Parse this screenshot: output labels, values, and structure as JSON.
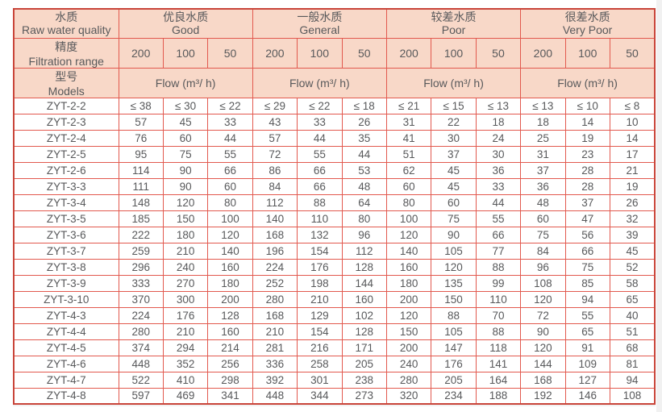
{
  "page": {
    "background": "#ffffff",
    "gutter_color": "#f1f1f1"
  },
  "colors": {
    "header_bg": "#f8d8c8",
    "border_inner": "#e2594e",
    "border_outer": "#c9453a",
    "text": "#58595b",
    "gutter": "#f1f1f1",
    "page_bg": "#ffffff"
  },
  "table": {
    "corner": {
      "zh": "水质",
      "en": "Raw water quality"
    },
    "filtration_header": {
      "zh": "精度",
      "en": "Filtration range"
    },
    "models_header": {
      "zh": "型号",
      "en": "Models"
    },
    "quality_groups": [
      {
        "zh": "优良水质",
        "en": "Good"
      },
      {
        "zh": "一般水质",
        "en": "General"
      },
      {
        "zh": "较差水质",
        "en": "Poor"
      },
      {
        "zh": "很差水质",
        "en": "Very Poor"
      }
    ],
    "filtration_values": [
      "200",
      "100",
      "50",
      "200",
      "100",
      "50",
      "200",
      "100",
      "50",
      "200",
      "100",
      "50"
    ],
    "flow_label": "Flow (m³/ h)",
    "rows": [
      {
        "model": "ZYT-2-2",
        "values": [
          "≤ 38",
          "≤ 30",
          "≤ 22",
          "≤ 29",
          "≤ 22",
          "≤ 18",
          "≤ 21",
          "≤ 15",
          "≤ 13",
          "≤ 13",
          "≤ 10",
          "≤ 8"
        ]
      },
      {
        "model": "ZYT-2-3",
        "values": [
          "57",
          "45",
          "33",
          "43",
          "33",
          "26",
          "31",
          "22",
          "18",
          "18",
          "14",
          "10"
        ]
      },
      {
        "model": "ZYT-2-4",
        "values": [
          "76",
          "60",
          "44",
          "57",
          "44",
          "35",
          "41",
          "30",
          "24",
          "25",
          "19",
          "14"
        ]
      },
      {
        "model": "ZYT-2-5",
        "values": [
          "95",
          "75",
          "55",
          "72",
          "55",
          "44",
          "51",
          "37",
          "30",
          "31",
          "23",
          "17"
        ]
      },
      {
        "model": "ZYT-2-6",
        "values": [
          "114",
          "90",
          "66",
          "86",
          "66",
          "53",
          "62",
          "45",
          "36",
          "37",
          "28",
          "21"
        ]
      },
      {
        "model": "ZYT-3-3",
        "values": [
          "111",
          "90",
          "60",
          "84",
          "66",
          "48",
          "60",
          "45",
          "33",
          "36",
          "28",
          "19"
        ]
      },
      {
        "model": "ZYT-3-4",
        "values": [
          "148",
          "120",
          "80",
          "112",
          "88",
          "64",
          "80",
          "60",
          "44",
          "48",
          "37",
          "26"
        ]
      },
      {
        "model": "ZYT-3-5",
        "values": [
          "185",
          "150",
          "100",
          "140",
          "110",
          "80",
          "100",
          "75",
          "55",
          "60",
          "47",
          "32"
        ]
      },
      {
        "model": "ZYT-3-6",
        "values": [
          "222",
          "180",
          "120",
          "168",
          "132",
          "96",
          "120",
          "90",
          "66",
          "75",
          "56",
          "39"
        ]
      },
      {
        "model": "ZYT-3-7",
        "values": [
          "259",
          "210",
          "140",
          "196",
          "154",
          "112",
          "140",
          "105",
          "77",
          "84",
          "66",
          "45"
        ]
      },
      {
        "model": "ZYT-3-8",
        "values": [
          "296",
          "240",
          "160",
          "224",
          "176",
          "128",
          "160",
          "120",
          "88",
          "96",
          "75",
          "52"
        ]
      },
      {
        "model": "ZYT-3-9",
        "values": [
          "333",
          "270",
          "180",
          "252",
          "198",
          "144",
          "180",
          "135",
          "99",
          "108",
          "85",
          "58"
        ]
      },
      {
        "model": "ZYT-3-10",
        "values": [
          "370",
          "300",
          "200",
          "280",
          "210",
          "160",
          "200",
          "150",
          "110",
          "120",
          "94",
          "65"
        ]
      },
      {
        "model": "ZYT-4-3",
        "values": [
          "224",
          "176",
          "128",
          "168",
          "129",
          "102",
          "120",
          "88",
          "70",
          "72",
          "55",
          "40"
        ]
      },
      {
        "model": "ZYT-4-4",
        "values": [
          "280",
          "210",
          "160",
          "210",
          "154",
          "128",
          "150",
          "105",
          "88",
          "90",
          "65",
          "51"
        ]
      },
      {
        "model": "ZYT-4-5",
        "values": [
          "374",
          "294",
          "214",
          "281",
          "216",
          "171",
          "200",
          "147",
          "118",
          "120",
          "91",
          "68"
        ]
      },
      {
        "model": "ZYT-4-6",
        "values": [
          "448",
          "352",
          "256",
          "336",
          "258",
          "205",
          "240",
          "176",
          "141",
          "144",
          "109",
          "81"
        ]
      },
      {
        "model": "ZYT-4-7",
        "values": [
          "522",
          "410",
          "298",
          "392",
          "301",
          "238",
          "280",
          "205",
          "164",
          "168",
          "127",
          "94"
        ]
      },
      {
        "model": "ZYT-4-8",
        "values": [
          "597",
          "469",
          "341",
          "448",
          "344",
          "273",
          "320",
          "234",
          "188",
          "192",
          "146",
          "108"
        ]
      }
    ]
  }
}
